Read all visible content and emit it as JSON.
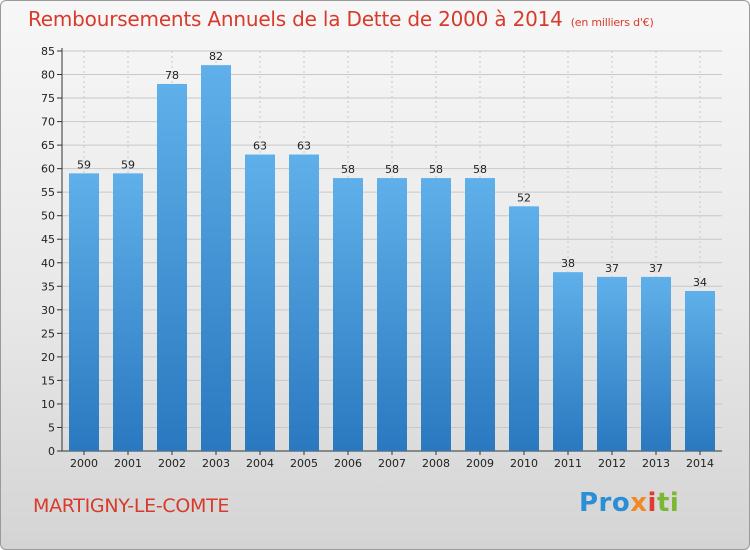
{
  "header": {
    "title": "Remboursements Annuels de la Dette de 2000 à 2014",
    "subtitle": "(en milliers d'€)"
  },
  "footer": {
    "commune": "MARTIGNY-LE-COMTE",
    "logo_parts": [
      "Pro",
      "x",
      "i",
      "ti"
    ]
  },
  "colors": {
    "title": "#d83a2c",
    "bar_top": "#5fb0ea",
    "bar_bottom": "#2a78bf",
    "grid": "#c8c8c8"
  },
  "chart_data": {
    "type": "bar",
    "categories": [
      "2000",
      "2001",
      "2002",
      "2003",
      "2004",
      "2005",
      "2006",
      "2007",
      "2008",
      "2009",
      "2010",
      "2011",
      "2012",
      "2013",
      "2014"
    ],
    "values": [
      59,
      59,
      78,
      82,
      63,
      63,
      58,
      58,
      58,
      58,
      52,
      38,
      37,
      37,
      34
    ],
    "title": "Remboursements Annuels de la Dette de 2000 à 2014",
    "subtitle": "(en milliers d'€)",
    "xlabel": "",
    "ylabel": "",
    "ylim": [
      0,
      85
    ],
    "yticks": [
      0,
      5,
      10,
      15,
      20,
      25,
      30,
      35,
      40,
      45,
      50,
      55,
      60,
      65,
      70,
      75,
      80,
      85
    ],
    "grid": true,
    "data_labels": true
  }
}
